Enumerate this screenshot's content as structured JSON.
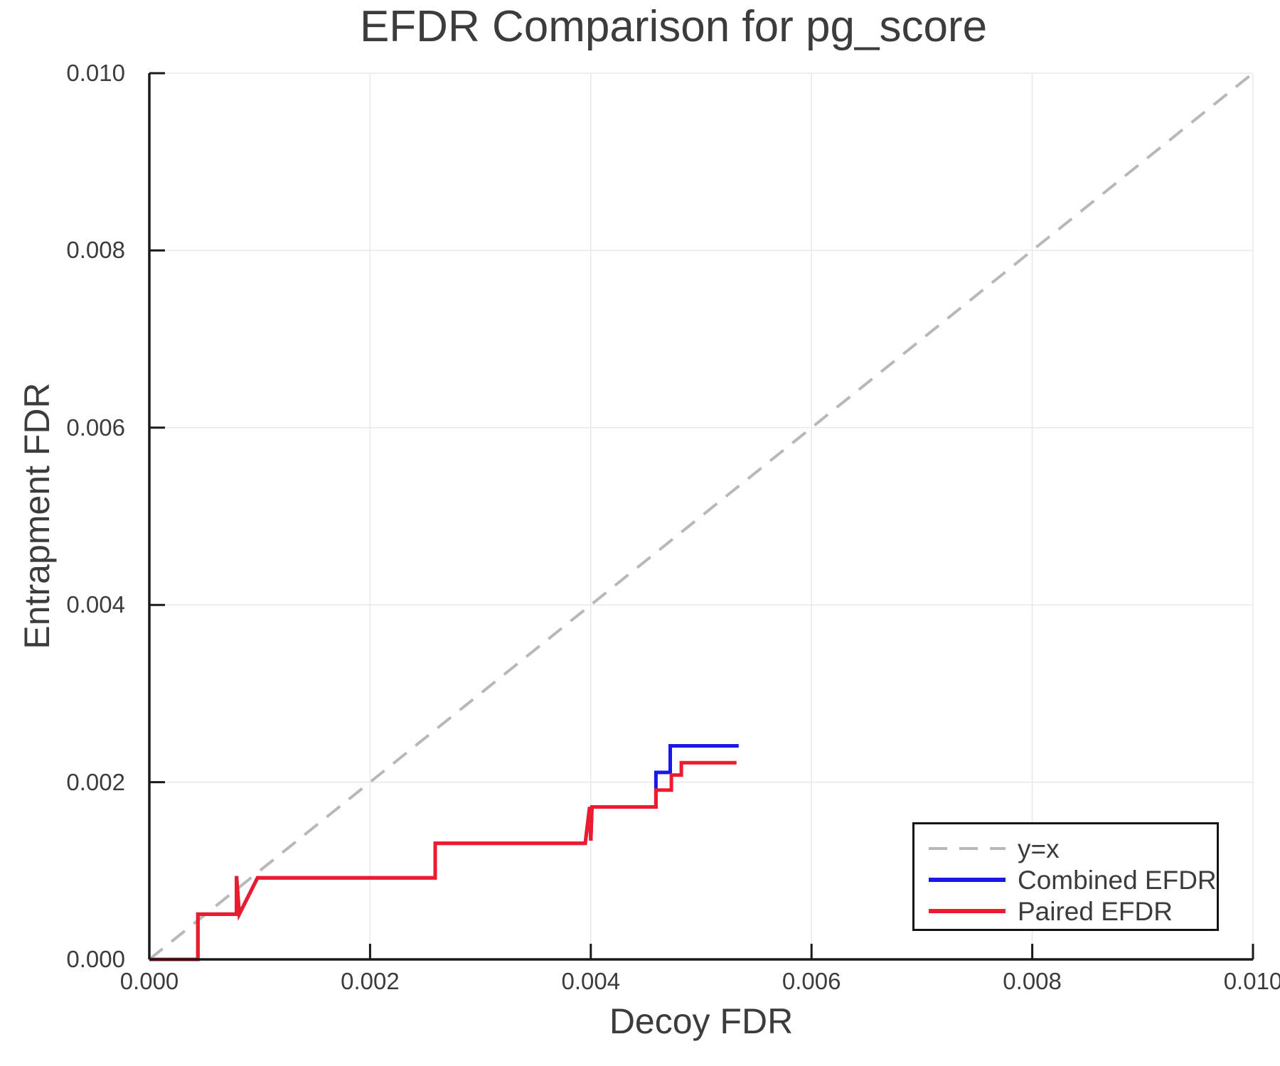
{
  "chart_data": {
    "type": "line",
    "title": "EFDR Comparison for pg_score",
    "xlabel": "Decoy FDR",
    "ylabel": "Entrapment FDR",
    "xlim": [
      0.0,
      0.01
    ],
    "ylim": [
      0.0,
      0.01
    ],
    "grid": true,
    "legend_position": "lower right",
    "xticks": {
      "values": [
        0.0,
        0.002,
        0.004,
        0.006,
        0.008,
        0.01
      ],
      "labels": [
        "0.000",
        "0.002",
        "0.004",
        "0.006",
        "0.008",
        "0.010"
      ]
    },
    "yticks": {
      "values": [
        0.0,
        0.002,
        0.004,
        0.006,
        0.008,
        0.01
      ],
      "labels": [
        "0.000",
        "0.002",
        "0.004",
        "0.006",
        "0.008",
        "0.010"
      ]
    },
    "colors": {
      "reference": "#b8b8b8",
      "combined": "#1b17e8",
      "paired": "#ec1c2e",
      "grid": "#e9e9e9",
      "axis": "#1a1a1a",
      "text": "#3c3c3c"
    },
    "series": [
      {
        "name": "y=x",
        "color": "#b8b8b8",
        "dash": "24 16",
        "width": 4,
        "points": [
          [
            0.0,
            0.0
          ],
          [
            0.01,
            0.01
          ]
        ]
      },
      {
        "name": "Combined EFDR",
        "color": "#1b17e8",
        "dash": null,
        "width": 5,
        "points": [
          [
            0.0,
            0.0
          ],
          [
            0.00044,
            0.0
          ],
          [
            0.00044,
            0.00051
          ],
          [
            0.00079,
            0.00051
          ],
          [
            0.00079,
            0.00094
          ],
          [
            0.000815,
            0.00051
          ],
          [
            0.00098,
            0.00092
          ],
          [
            0.00259,
            0.00092
          ],
          [
            0.00259,
            0.00131
          ],
          [
            0.00395,
            0.00131
          ],
          [
            0.00399,
            0.00172
          ],
          [
            0.004,
            0.00134
          ],
          [
            0.00401,
            0.00172
          ],
          [
            0.00459,
            0.00172
          ],
          [
            0.00459,
            0.00211
          ],
          [
            0.00472,
            0.00211
          ],
          [
            0.00472,
            0.00241
          ],
          [
            0.00534,
            0.00241
          ]
        ]
      },
      {
        "name": "Paired EFDR",
        "color": "#ec1c2e",
        "dash": null,
        "width": 5,
        "points": [
          [
            0.0,
            0.0
          ],
          [
            0.00044,
            0.0
          ],
          [
            0.00044,
            0.00051
          ],
          [
            0.00079,
            0.00051
          ],
          [
            0.00079,
            0.00094
          ],
          [
            0.000815,
            0.00051
          ],
          [
            0.00098,
            0.00092
          ],
          [
            0.00259,
            0.00092
          ],
          [
            0.00259,
            0.00131
          ],
          [
            0.00395,
            0.00131
          ],
          [
            0.00399,
            0.00172
          ],
          [
            0.004,
            0.00134
          ],
          [
            0.00401,
            0.00172
          ],
          [
            0.00459,
            0.00172
          ],
          [
            0.00459,
            0.00191
          ],
          [
            0.00473,
            0.00191
          ],
          [
            0.00473,
            0.00208
          ],
          [
            0.00482,
            0.00208
          ],
          [
            0.00482,
            0.00222
          ],
          [
            0.00532,
            0.00222
          ]
        ]
      }
    ]
  }
}
